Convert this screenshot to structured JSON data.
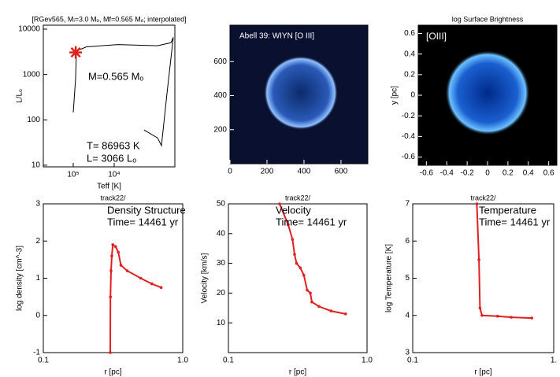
{
  "chart_data": [
    {
      "type": "line",
      "title": "[RGev565, Mᵢ=3.0 Mₒ, Mf=0.565 Mₒ; interpolated]",
      "x_label": "Teff [K]",
      "y_label": "L/Lₒ",
      "xlog": true,
      "ylog": true,
      "xlim": [
        537000,
        330
      ],
      "ylim": [
        9.2,
        12200
      ],
      "xticks": [
        {
          "value": 100000,
          "label": "10⁵"
        },
        {
          "value": 10000,
          "label": "10⁴"
        }
      ],
      "yticks": [
        10,
        100,
        1000,
        10000
      ],
      "color": "#000000",
      "x": [
        1870,
        875,
        701,
        515,
        361,
        412,
        875,
        8020,
        47100,
        83800,
        87500,
        100000
      ],
      "values": [
        60,
        40,
        27,
        367,
        6600,
        5000,
        4300,
        4570,
        4070,
        3300,
        818,
        146
      ],
      "current_point": {
        "x": 86963,
        "y": 3066,
        "color": "#e02020"
      },
      "annotations": [
        "M=0.565 Mₒ",
        "T= 86963 K",
        "L=  3066 Lₒ"
      ]
    },
    {
      "type": "image",
      "annotations": [
        "Abell 39: WIYN [O III]"
      ],
      "xlim": [
        0,
        745
      ],
      "ylim": [
        0,
        814
      ],
      "xticks": [
        0,
        200,
        400,
        600
      ],
      "yticks": [
        200,
        400,
        600
      ]
    },
    {
      "type": "image",
      "title": "log Surface Brightness",
      "y_label": "y [pc]",
      "annotations": [
        "[OIII]"
      ],
      "xlim": [
        -0.68,
        0.68
      ],
      "ylim": [
        -0.68,
        0.68
      ],
      "xticks": [
        -0.6,
        -0.4,
        -0.2,
        0.0,
        0.2,
        0.4,
        0.6
      ],
      "yticks": [
        -0.6,
        -0.4,
        -0.2,
        0.0,
        0.2,
        0.4,
        0.6
      ]
    },
    {
      "type": "line",
      "title": "track22/",
      "x_label": "r [pc]",
      "y_label": "log density [cm^-3]",
      "xlog": true,
      "xlim": [
        0.1,
        1
      ],
      "ylim": [
        -1,
        3
      ],
      "xticks": [
        0.1,
        {
          "value": 1,
          "label": "1.0"
        }
      ],
      "yticks": [
        -1,
        0,
        1,
        2,
        3
      ],
      "color": "#e02020",
      "x": [
        0.302,
        0.303,
        0.306,
        0.31,
        0.315,
        0.33,
        0.345,
        0.36,
        0.4,
        0.5,
        0.6,
        0.7
      ],
      "values": [
        -1,
        0.5,
        1.2,
        1.6,
        1.9,
        1.85,
        1.7,
        1.35,
        1.2,
        1.0,
        0.85,
        0.75
      ],
      "annotations": [
        "Density Structure",
        "Time=  14461 yr"
      ]
    },
    {
      "type": "line",
      "title": "track22/",
      "x_label": "r [pc]",
      "y_label": "Velocity [km/s]",
      "xlog": true,
      "xlim": [
        0.1,
        1
      ],
      "ylim": [
        0,
        50
      ],
      "xticks": [
        0.1,
        {
          "value": 1,
          "label": "1.0"
        }
      ],
      "yticks": [
        10,
        20,
        30,
        40,
        50
      ],
      "color": "#e02020",
      "x": [
        0.234,
        0.27,
        0.29,
        0.3,
        0.31,
        0.33,
        0.35,
        0.37,
        0.39,
        0.4,
        0.45,
        0.55,
        0.7
      ],
      "values": [
        50,
        43,
        38,
        33,
        30,
        28.5,
        26,
        21,
        20,
        17,
        15.5,
        14,
        13
      ],
      "annotations": [
        "Velocity",
        "Time=  14461 yr"
      ]
    },
    {
      "type": "line",
      "title": "track22/",
      "x_label": "r [pc]",
      "y_label": "log Temperature [K]",
      "xlog": true,
      "xlim": [
        0.1,
        1
      ],
      "ylim": [
        3,
        7
      ],
      "xticks": [
        0.1,
        {
          "value": 1,
          "label": "1."
        }
      ],
      "yticks": [
        3,
        4,
        5,
        6,
        7
      ],
      "color": "#e02020",
      "x": [
        0.285,
        0.295,
        0.3,
        0.31,
        0.4,
        0.5,
        0.7
      ],
      "values": [
        7,
        5.5,
        4.2,
        4.0,
        3.98,
        3.95,
        3.93
      ],
      "annotations": [
        "Temperature",
        "Time=  14461 yr"
      ]
    }
  ]
}
